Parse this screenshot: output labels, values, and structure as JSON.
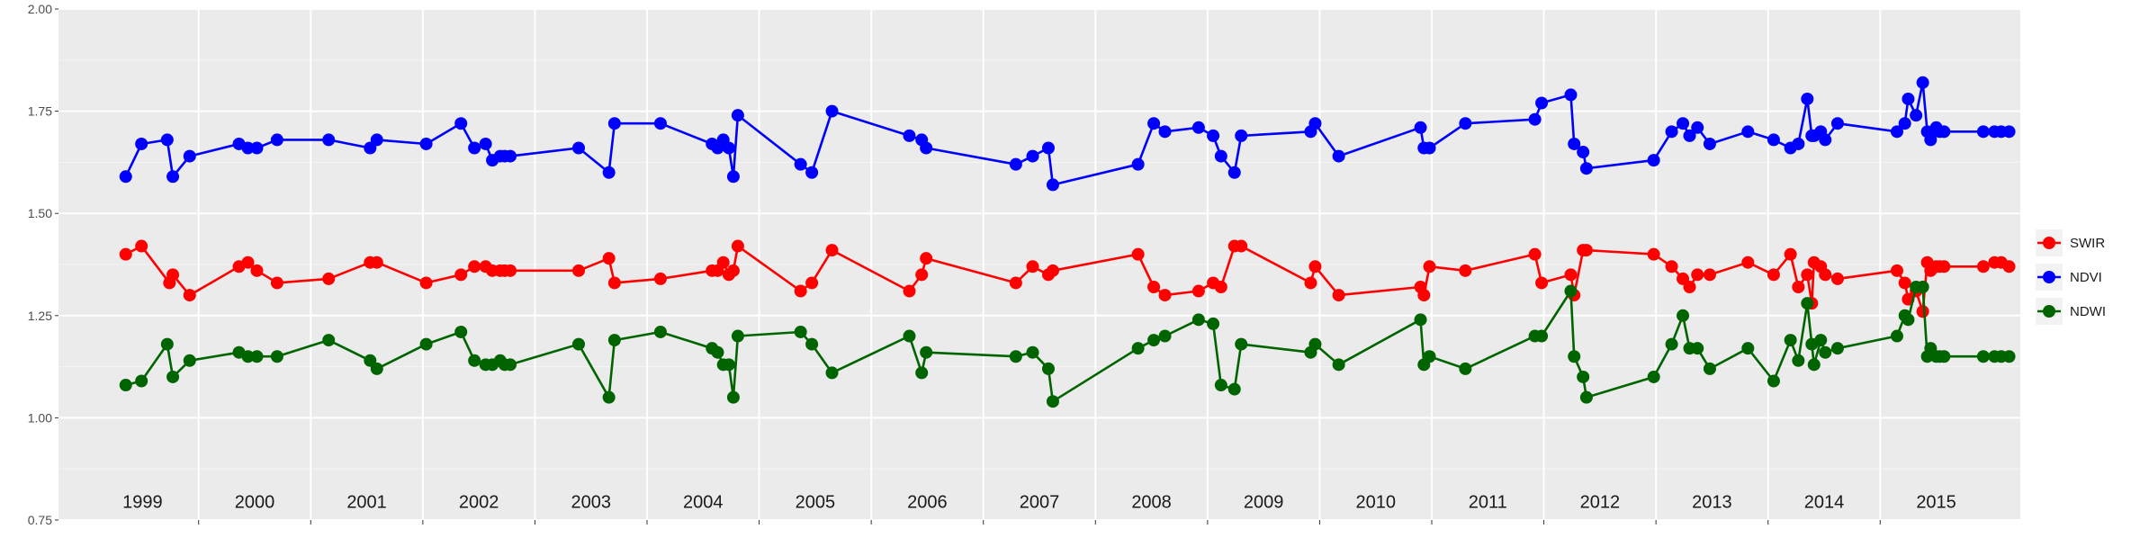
{
  "chart_data": {
    "type": "line",
    "title": "",
    "xlabel": "",
    "ylabel": "",
    "xlim": [
      1998.75,
      2016.25
    ],
    "ylim": [
      0.75,
      2.0
    ],
    "yticks": [
      "0.75",
      "1.00",
      "1.25",
      "1.50",
      "1.75",
      "2.00"
    ],
    "year_labels": [
      "1999",
      "2000",
      "2001",
      "2002",
      "2003",
      "2004",
      "2005",
      "2006",
      "2007",
      "2008",
      "2009",
      "2010",
      "2011",
      "2012",
      "2013",
      "2014",
      "2015"
    ],
    "grid": true,
    "legend_position": "right",
    "series": [
      {
        "name": "SWIR",
        "color": "#ff0000",
        "x": [
          1999.35,
          1999.49,
          1999.74,
          1999.77,
          1999.92,
          2000.36,
          2000.44,
          2000.52,
          2000.7,
          2001.16,
          2001.53,
          2001.59,
          2002.03,
          2002.34,
          2002.46,
          2002.56,
          2002.62,
          2002.69,
          2002.73,
          2002.78,
          2003.39,
          2003.66,
          2003.71,
          2004.12,
          2004.58,
          2004.63,
          2004.68,
          2004.73,
          2004.77,
          2004.81,
          2005.37,
          2005.47,
          2005.65,
          2006.34,
          2006.45,
          2006.49,
          2007.29,
          2007.44,
          2007.58,
          2007.62,
          2008.38,
          2008.52,
          2008.62,
          2008.92,
          2009.05,
          2009.12,
          2009.24,
          2009.3,
          2009.92,
          2009.96,
          2010.17,
          2010.9,
          2010.93,
          2010.98,
          2011.3,
          2011.92,
          2011.98,
          2012.24,
          2012.27,
          2012.35,
          2012.38,
          2012.98,
          2013.14,
          2013.24,
          2013.3,
          2013.37,
          2013.48,
          2013.82,
          2014.05,
          2014.2,
          2014.27,
          2014.35,
          2014.39,
          2014.41,
          2014.47,
          2014.51,
          2014.62,
          2015.15,
          2015.22,
          2015.25,
          2015.32,
          2015.38,
          2015.42,
          2015.45,
          2015.5,
          2015.53,
          2015.57,
          2015.92,
          2016.02,
          2016.08,
          2016.15
        ],
        "values": [
          1.4,
          1.42,
          1.33,
          1.35,
          1.3,
          1.37,
          1.38,
          1.36,
          1.33,
          1.34,
          1.38,
          1.38,
          1.33,
          1.35,
          1.37,
          1.37,
          1.36,
          1.36,
          1.36,
          1.36,
          1.36,
          1.39,
          1.33,
          1.34,
          1.36,
          1.36,
          1.38,
          1.35,
          1.36,
          1.42,
          1.31,
          1.33,
          1.41,
          1.31,
          1.35,
          1.39,
          1.33,
          1.37,
          1.35,
          1.36,
          1.4,
          1.32,
          1.3,
          1.31,
          1.33,
          1.32,
          1.42,
          1.42,
          1.33,
          1.37,
          1.3,
          1.32,
          1.3,
          1.37,
          1.36,
          1.4,
          1.33,
          1.35,
          1.3,
          1.41,
          1.41,
          1.4,
          1.37,
          1.34,
          1.32,
          1.35,
          1.35,
          1.38,
          1.35,
          1.4,
          1.32,
          1.35,
          1.28,
          1.38,
          1.37,
          1.35,
          1.34,
          1.36,
          1.33,
          1.29,
          1.31,
          1.26,
          1.38,
          1.36,
          1.37,
          1.37,
          1.37,
          1.37,
          1.38,
          1.38,
          1.37
        ]
      },
      {
        "name": "NDVI",
        "color": "#0000ff",
        "x": [
          1999.35,
          1999.49,
          1999.72,
          1999.77,
          1999.92,
          2000.36,
          2000.44,
          2000.52,
          2000.7,
          2001.16,
          2001.53,
          2001.59,
          2002.03,
          2002.34,
          2002.46,
          2002.56,
          2002.62,
          2002.69,
          2002.73,
          2002.78,
          2003.39,
          2003.66,
          2003.71,
          2004.12,
          2004.58,
          2004.63,
          2004.68,
          2004.73,
          2004.77,
          2004.81,
          2005.37,
          2005.47,
          2005.65,
          2006.34,
          2006.45,
          2006.49,
          2007.29,
          2007.44,
          2007.58,
          2007.62,
          2008.38,
          2008.52,
          2008.62,
          2008.92,
          2009.05,
          2009.12,
          2009.24,
          2009.3,
          2009.92,
          2009.96,
          2010.17,
          2010.9,
          2010.93,
          2010.98,
          2011.3,
          2011.92,
          2011.98,
          2012.24,
          2012.27,
          2012.35,
          2012.38,
          2012.98,
          2013.14,
          2013.24,
          2013.3,
          2013.37,
          2013.48,
          2013.82,
          2014.05,
          2014.2,
          2014.27,
          2014.35,
          2014.39,
          2014.41,
          2014.47,
          2014.51,
          2014.62,
          2015.15,
          2015.22,
          2015.25,
          2015.32,
          2015.38,
          2015.42,
          2015.45,
          2015.5,
          2015.53,
          2015.57,
          2015.92,
          2016.02,
          2016.08,
          2016.15
        ],
        "values": [
          1.59,
          1.67,
          1.68,
          1.59,
          1.64,
          1.67,
          1.66,
          1.66,
          1.68,
          1.68,
          1.66,
          1.68,
          1.67,
          1.72,
          1.66,
          1.67,
          1.63,
          1.64,
          1.64,
          1.64,
          1.66,
          1.6,
          1.72,
          1.72,
          1.67,
          1.66,
          1.68,
          1.66,
          1.59,
          1.74,
          1.62,
          1.6,
          1.75,
          1.69,
          1.68,
          1.66,
          1.62,
          1.64,
          1.66,
          1.57,
          1.62,
          1.72,
          1.7,
          1.71,
          1.69,
          1.64,
          1.6,
          1.69,
          1.7,
          1.72,
          1.64,
          1.71,
          1.66,
          1.66,
          1.72,
          1.73,
          1.77,
          1.79,
          1.67,
          1.65,
          1.61,
          1.63,
          1.7,
          1.72,
          1.69,
          1.71,
          1.67,
          1.7,
          1.68,
          1.66,
          1.67,
          1.78,
          1.69,
          1.69,
          1.7,
          1.68,
          1.72,
          1.7,
          1.72,
          1.78,
          1.74,
          1.82,
          1.7,
          1.68,
          1.71,
          1.7,
          1.7,
          1.7,
          1.7,
          1.7,
          1.7
        ]
      },
      {
        "name": "NDWI",
        "color": "#006400",
        "x": [
          1999.35,
          1999.49,
          1999.72,
          1999.77,
          1999.92,
          2000.36,
          2000.44,
          2000.52,
          2000.7,
          2001.16,
          2001.53,
          2001.59,
          2002.03,
          2002.34,
          2002.46,
          2002.56,
          2002.62,
          2002.69,
          2002.73,
          2002.78,
          2003.39,
          2003.66,
          2003.71,
          2004.12,
          2004.58,
          2004.63,
          2004.68,
          2004.73,
          2004.77,
          2004.81,
          2005.37,
          2005.47,
          2005.65,
          2006.34,
          2006.45,
          2006.49,
          2007.29,
          2007.44,
          2007.58,
          2007.62,
          2008.38,
          2008.52,
          2008.62,
          2008.92,
          2009.05,
          2009.12,
          2009.24,
          2009.3,
          2009.92,
          2009.96,
          2010.17,
          2010.9,
          2010.93,
          2010.98,
          2011.3,
          2011.92,
          2011.98,
          2012.24,
          2012.27,
          2012.35,
          2012.38,
          2012.98,
          2013.14,
          2013.24,
          2013.3,
          2013.37,
          2013.48,
          2013.82,
          2014.05,
          2014.2,
          2014.27,
          2014.35,
          2014.39,
          2014.41,
          2014.47,
          2014.51,
          2014.62,
          2015.15,
          2015.22,
          2015.25,
          2015.32,
          2015.38,
          2015.42,
          2015.45,
          2015.5,
          2015.53,
          2015.57,
          2015.92,
          2016.02,
          2016.08,
          2016.15
        ],
        "values": [
          1.08,
          1.09,
          1.18,
          1.1,
          1.14,
          1.16,
          1.15,
          1.15,
          1.15,
          1.19,
          1.14,
          1.12,
          1.18,
          1.21,
          1.14,
          1.13,
          1.13,
          1.14,
          1.13,
          1.13,
          1.18,
          1.05,
          1.19,
          1.21,
          1.17,
          1.16,
          1.13,
          1.13,
          1.05,
          1.2,
          1.21,
          1.18,
          1.11,
          1.2,
          1.11,
          1.16,
          1.15,
          1.16,
          1.12,
          1.04,
          1.17,
          1.19,
          1.2,
          1.24,
          1.23,
          1.08,
          1.07,
          1.18,
          1.16,
          1.18,
          1.13,
          1.24,
          1.13,
          1.15,
          1.12,
          1.2,
          1.2,
          1.31,
          1.15,
          1.1,
          1.05,
          1.1,
          1.18,
          1.25,
          1.17,
          1.17,
          1.12,
          1.17,
          1.09,
          1.19,
          1.14,
          1.28,
          1.18,
          1.13,
          1.19,
          1.16,
          1.17,
          1.2,
          1.25,
          1.24,
          1.32,
          1.32,
          1.15,
          1.17,
          1.15,
          1.15,
          1.15,
          1.15,
          1.15,
          1.15,
          1.15
        ]
      }
    ]
  }
}
